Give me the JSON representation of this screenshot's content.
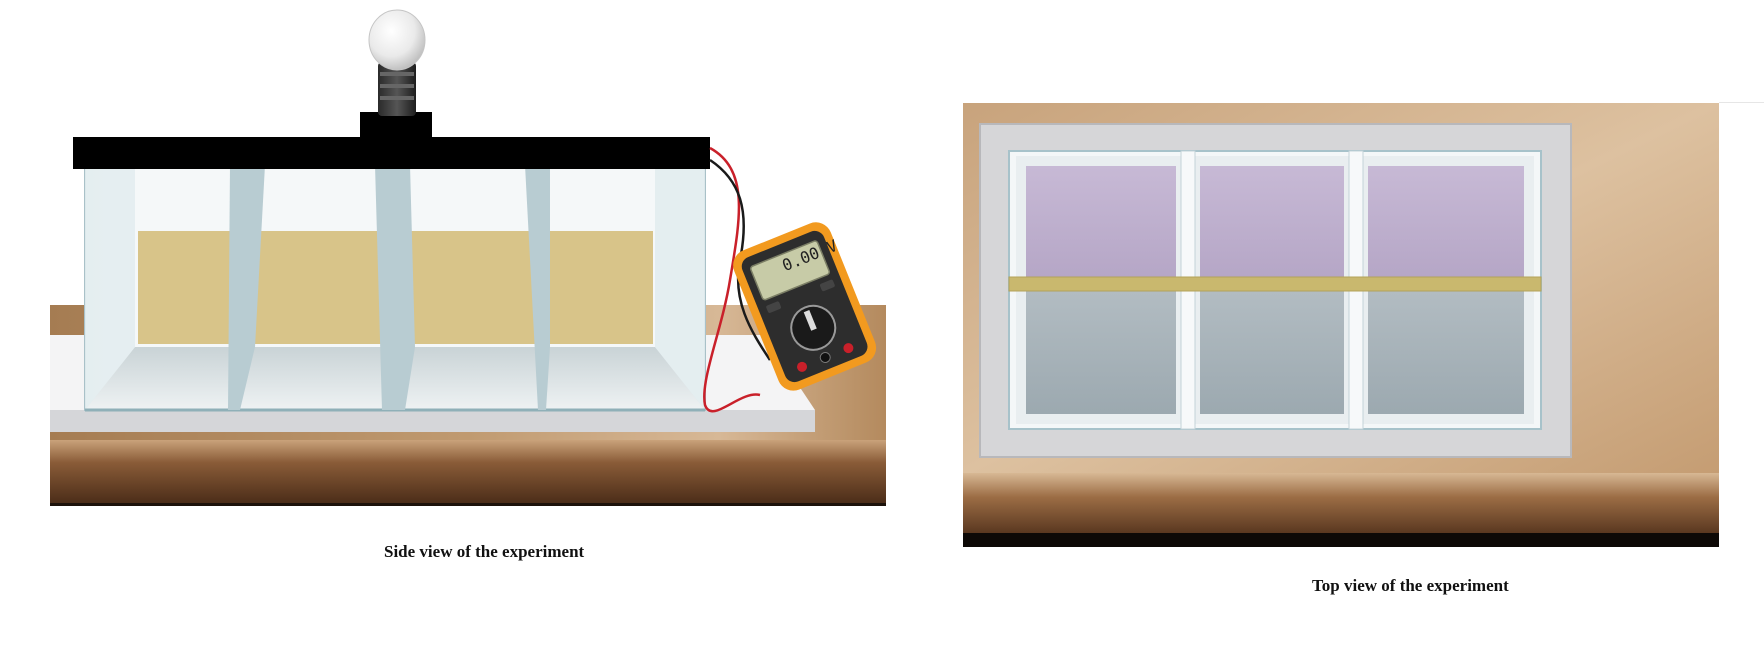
{
  "captions": {
    "side_view": "Side view of the experiment",
    "top_view": "Top view of the experiment"
  },
  "multimeter": {
    "display": "0.00 V"
  },
  "colors": {
    "wood": "#b78f62",
    "wood_dark": "#5a3820",
    "solution_side": "#d8c489",
    "solution_top": "#c9b86e",
    "lavender": "#b8a8c8",
    "gray_water": "#98a6ae",
    "lid": "#000000",
    "multimeter_body": "#f29a1f",
    "lcd": "#c7cba7"
  },
  "icons": {
    "bulb": "light-bulb-icon",
    "multimeter": "multimeter-icon"
  }
}
